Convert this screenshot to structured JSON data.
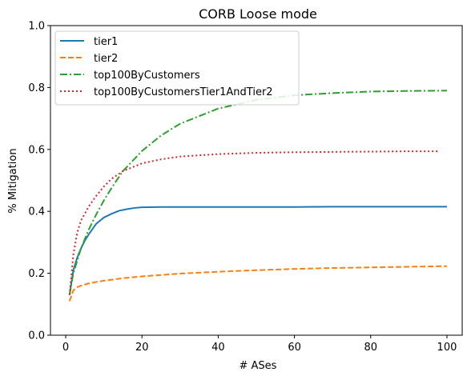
{
  "chart_data": {
    "type": "line",
    "title": "CORB Loose mode",
    "xlabel": "# ASes",
    "ylabel": "% Mitigation",
    "xlim": [
      -4,
      104
    ],
    "ylim": [
      0.0,
      1.0
    ],
    "xticks": [
      0,
      20,
      40,
      60,
      80,
      100
    ],
    "xtick_labels": [
      "0",
      "20",
      "40",
      "60",
      "80",
      "100"
    ],
    "yticks": [
      0.0,
      0.2,
      0.4,
      0.6,
      0.8,
      1.0
    ],
    "ytick_labels": [
      "0.0",
      "0.2",
      "0.4",
      "0.6",
      "0.8",
      "1.0"
    ],
    "grid": false,
    "legend_position": "top-left",
    "series": [
      {
        "name": "tier1",
        "color": "#1f77b4",
        "dash": "solid",
        "x": [
          1,
          2,
          3,
          4,
          5,
          6,
          8,
          10,
          12,
          14,
          16,
          18,
          20,
          25,
          30,
          40,
          50,
          60,
          70,
          80,
          90,
          100
        ],
        "y": [
          0.13,
          0.21,
          0.25,
          0.28,
          0.305,
          0.325,
          0.36,
          0.38,
          0.392,
          0.402,
          0.407,
          0.411,
          0.413,
          0.414,
          0.414,
          0.414,
          0.414,
          0.414,
          0.415,
          0.415,
          0.415,
          0.415
        ]
      },
      {
        "name": "tier2",
        "color": "#ff7f0e",
        "dash": "dashed",
        "x": [
          1,
          2,
          3,
          4,
          6,
          8,
          10,
          15,
          20,
          30,
          40,
          50,
          60,
          70,
          80,
          90,
          100
        ],
        "y": [
          0.11,
          0.145,
          0.155,
          0.16,
          0.167,
          0.172,
          0.176,
          0.184,
          0.19,
          0.199,
          0.205,
          0.21,
          0.214,
          0.217,
          0.219,
          0.221,
          0.223
        ]
      },
      {
        "name": "top100ByCustomers",
        "color": "#2ca02c",
        "dash": "dashdot",
        "x": [
          1,
          2,
          4,
          6,
          8,
          10,
          12,
          15,
          20,
          25,
          30,
          40,
          50,
          60,
          70,
          80,
          90,
          100
        ],
        "y": [
          0.13,
          0.2,
          0.28,
          0.34,
          0.39,
          0.435,
          0.475,
          0.53,
          0.595,
          0.645,
          0.683,
          0.732,
          0.76,
          0.775,
          0.782,
          0.787,
          0.789,
          0.79
        ]
      },
      {
        "name": "top100ByCustomersTier1AndTier2",
        "color": "#d62728",
        "dash": "dotted",
        "x": [
          1,
          2,
          3,
          4,
          6,
          8,
          10,
          12,
          15,
          20,
          25,
          30,
          40,
          50,
          60,
          70,
          80,
          90,
          98
        ],
        "y": [
          0.13,
          0.26,
          0.33,
          0.37,
          0.415,
          0.45,
          0.48,
          0.505,
          0.53,
          0.555,
          0.568,
          0.577,
          0.585,
          0.589,
          0.591,
          0.592,
          0.593,
          0.594,
          0.594
        ]
      }
    ]
  }
}
